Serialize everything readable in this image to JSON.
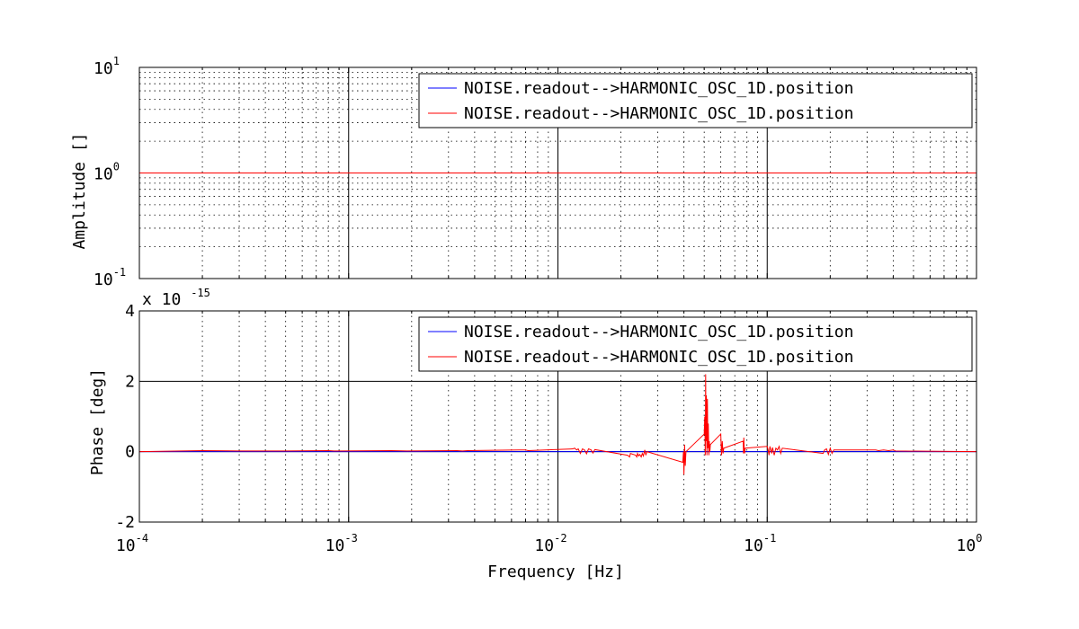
{
  "chart_data": {
    "type": "line",
    "xlabel": "Frequency   [Hz]",
    "xscale": "log",
    "xlim_exponents": [
      -4,
      0
    ],
    "x_tick_base": "10",
    "x_tick_exponents": [
      "-4",
      "-3",
      "-2",
      "-1",
      "0"
    ],
    "grid": true,
    "legend_placement": "top-right",
    "subplots": [
      {
        "name": "amplitude",
        "ylabel": "Amplitude  []",
        "yscale": "log",
        "ylim_exponents": [
          -1,
          1
        ],
        "y_tick_base": "10",
        "y_tick_exponents": [
          "1",
          "0",
          "-1"
        ],
        "legend": [
          "NOISE.readout-->HARMONIC_OSC_1D.position",
          "NOISE.readout-->HARMONIC_OSC_1D.position"
        ],
        "series": [
          {
            "color": "#0000ff",
            "x": [
              0.0001,
              1
            ],
            "y": [
              1,
              1
            ]
          },
          {
            "color": "#ff0000",
            "x": [
              0.0001,
              1
            ],
            "y": [
              1,
              1
            ]
          }
        ]
      },
      {
        "name": "phase",
        "ylabel": "Phase   [deg]",
        "yscale": "linear",
        "ylim": [
          -2,
          4
        ],
        "y_ticks": [
          "4",
          "2",
          "0",
          "-2"
        ],
        "y_scale_note": "x 10",
        "y_scale_exponent": "-15",
        "legend": [
          "NOISE.readout-->HARMONIC_OSC_1D.position",
          "NOISE.readout-->HARMONIC_OSC_1D.position"
        ],
        "series": [
          {
            "color": "#0000ff",
            "x": [
              0.0001,
              1
            ],
            "y": [
              0,
              0
            ]
          },
          {
            "color": "#ff0000",
            "x": [
              0.0001,
              0.0002,
              0.0003,
              0.0005,
              0.0008,
              0.00085,
              0.0016,
              0.0019,
              0.0033,
              0.0035,
              0.0037,
              0.0065,
              0.007,
              0.0072,
              0.0118,
              0.012,
              0.0123,
              0.0125,
              0.0128,
              0.0131,
              0.0134,
              0.0137,
              0.014,
              0.0144,
              0.0147,
              0.015,
              0.0215,
              0.022,
              0.0222,
              0.0235,
              0.0238,
              0.024,
              0.0243,
              0.0246,
              0.025,
              0.0253,
              0.0256,
              0.026,
              0.0263,
              0.0266,
              0.0395,
              0.0398,
              0.04,
              0.0403,
              0.0406,
              0.0409,
              0.05,
              0.0503,
              0.0506,
              0.0508,
              0.051,
              0.0512,
              0.0515,
              0.0518,
              0.052,
              0.0523,
              0.0526,
              0.0529,
              0.0532,
              0.0535,
              0.06,
              0.0605,
              0.061,
              0.0615,
              0.062,
              0.0768,
              0.077,
              0.0773,
              0.0776,
              0.078,
              0.0785,
              0.1,
              0.101,
              0.102,
              0.103,
              0.104,
              0.105,
              0.106,
              0.108,
              0.11,
              0.112,
              0.114,
              0.116,
              0.118,
              0.185,
              0.188,
              0.192,
              0.196,
              0.2,
              0.204,
              0.208,
              0.33,
              0.34,
              0.36,
              0.38,
              0.4,
              0.41,
              1
            ],
            "y": [
              0,
              0.03,
              0.02,
              0.02,
              0.03,
              0.02,
              0.03,
              0.02,
              0.03,
              0.02,
              0.03,
              0.05,
              0.05,
              0.03,
              0.08,
              0.1,
              0.05,
              0.08,
              -0.05,
              0.08,
              0.05,
              -0.06,
              0.08,
              0.05,
              -0.04,
              0.06,
              -0.1,
              -0.15,
              -0.05,
              -0.1,
              -0.15,
              -0.05,
              -0.12,
              -0.08,
              -0.15,
              -0.05,
              -0.12,
              0.05,
              -0.1,
              0,
              -0.3,
              0,
              -0.65,
              0.2,
              -0.4,
              0,
              0.5,
              1.0,
              -0.1,
              2.2,
              0.3,
              1.6,
              -0.1,
              1.5,
              0.1,
              0.8,
              -0.1,
              0.3,
              0,
              0.2,
              0.5,
              -0.1,
              0.3,
              -0.05,
              0.1,
              0.3,
              -0.05,
              0.4,
              0.1,
              -0.05,
              0.1,
              0.15,
              0.05,
              -0.1,
              0.15,
              0.05,
              -0.05,
              0.12,
              -0.1,
              0.1,
              0.05,
              0.15,
              -0.05,
              0.1,
              -0.05,
              0.05,
              0.08,
              -0.08,
              0.1,
              -0.05,
              0.05,
              0.05,
              0.03,
              0.05,
              0.03,
              0.05,
              0.02,
              0
            ]
          }
        ]
      }
    ]
  }
}
